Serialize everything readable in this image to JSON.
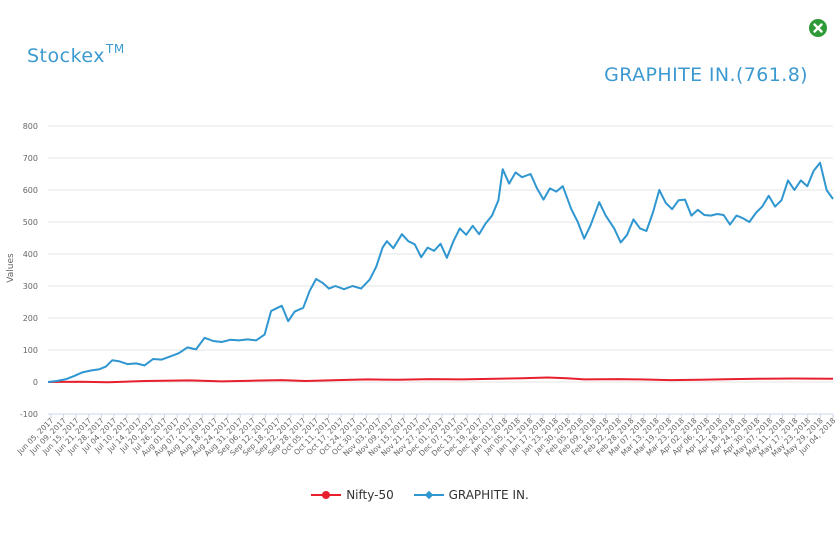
{
  "brand": {
    "name": "Stockex",
    "mark": "TM"
  },
  "stock_title": "GRAPHITE IN.(761.8)",
  "icons": {
    "close": "close-icon"
  },
  "colors": {
    "accent": "#3d9ad1",
    "nifty": "#e8202e",
    "graphite": "#2f96d0",
    "close": "#2e9a38"
  },
  "legend": {
    "nifty_label": "Nifty-50",
    "graphite_label": "GRAPHITE IN."
  },
  "chart_data": {
    "type": "line",
    "ylabel": "Values",
    "ylim": [
      -100,
      800
    ],
    "yticks": [
      -100,
      0,
      100,
      200,
      300,
      400,
      500,
      600,
      700,
      800
    ],
    "x_start": "2017-06-05",
    "x_end": "2018-06-06",
    "xticks": [
      "Jun 05, 2017",
      "Jun 09, 2017",
      "Jun 15, 2017",
      "Jun 21, 2017",
      "Jun 28, 2017",
      "Jul 04, 2017",
      "Jul 10, 2017",
      "Jul 14, 2017",
      "Jul 20, 2017",
      "Jul 26, 2017",
      "Aug 01, 2017",
      "Aug 07, 2017",
      "Aug 11, 2017",
      "Aug 18, 2017",
      "Aug 24, 2017",
      "Aug 31, 2017",
      "Sep 06, 2017",
      "Sep 12, 2017",
      "Sep 18, 2017",
      "Sep 22, 2017",
      "Sep 28, 2017",
      "Oct 05, 2017",
      "Oct 11, 2017",
      "Oct 17, 2017",
      "Oct 24, 2017",
      "Oct 30, 2017",
      "Nov 03, 2017",
      "Nov 09, 2017",
      "Nov 15, 2017",
      "Nov 21, 2017",
      "Nov 27, 2017",
      "Dec 01, 2017",
      "Dec 07, 2017",
      "Dec 13, 2017",
      "Dec 19, 2017",
      "Dec 26, 2017",
      "Jan 01, 2018",
      "Jan 05, 2018",
      "Jan 11, 2018",
      "Jan 17, 2018",
      "Jan 23, 2018",
      "Jan 30, 2018",
      "Feb 05, 2018",
      "Feb 09, 2018",
      "Feb 16, 2018",
      "Feb 22, 2018",
      "Feb 28, 2018",
      "Mar 07, 2018",
      "Mar 13, 2018",
      "Mar 19, 2018",
      "Mar 23, 2018",
      "Apr 02, 2018",
      "Apr 06, 2018",
      "Apr 12, 2018",
      "Apr 18, 2018",
      "Apr 24, 2018",
      "Apr 30, 2018",
      "May 07, 2018",
      "May 11, 2018",
      "May 17, 2018",
      "May 23, 2018",
      "May 29, 2018",
      "Jun 04, 2018"
    ],
    "legend_position": "bottom",
    "grid": true,
    "series": [
      {
        "name": "Nifty-50",
        "color": "#e8202e",
        "points": [
          [
            "2017-06-05",
            0
          ],
          [
            "2017-06-20",
            1
          ],
          [
            "2017-07-03",
            -1
          ],
          [
            "2017-07-20",
            3
          ],
          [
            "2017-08-10",
            5
          ],
          [
            "2017-08-25",
            2
          ],
          [
            "2017-09-08",
            4
          ],
          [
            "2017-09-22",
            6
          ],
          [
            "2017-10-03",
            3
          ],
          [
            "2017-10-18",
            6
          ],
          [
            "2017-11-01",
            8
          ],
          [
            "2017-11-15",
            7
          ],
          [
            "2017-11-30",
            9
          ],
          [
            "2017-12-15",
            8
          ],
          [
            "2017-12-31",
            10
          ],
          [
            "2018-01-12",
            12
          ],
          [
            "2018-01-24",
            14
          ],
          [
            "2018-02-02",
            12
          ],
          [
            "2018-02-10",
            8
          ],
          [
            "2018-02-26",
            9
          ],
          [
            "2018-03-08",
            8
          ],
          [
            "2018-03-22",
            6
          ],
          [
            "2018-04-05",
            7
          ],
          [
            "2018-04-20",
            9
          ],
          [
            "2018-05-02",
            10
          ],
          [
            "2018-05-18",
            11
          ],
          [
            "2018-06-06",
            10
          ]
        ]
      },
      {
        "name": "GRAPHITE IN.",
        "color": "#2f96d0",
        "points": [
          [
            "2017-06-05",
            0
          ],
          [
            "2017-06-09",
            3
          ],
          [
            "2017-06-13",
            8
          ],
          [
            "2017-06-17",
            18
          ],
          [
            "2017-06-21",
            30
          ],
          [
            "2017-06-25",
            36
          ],
          [
            "2017-06-29",
            40
          ],
          [
            "2017-07-02",
            48
          ],
          [
            "2017-07-05",
            68
          ],
          [
            "2017-07-08",
            65
          ],
          [
            "2017-07-12",
            56
          ],
          [
            "2017-07-16",
            58
          ],
          [
            "2017-07-20",
            52
          ],
          [
            "2017-07-24",
            72
          ],
          [
            "2017-07-28",
            70
          ],
          [
            "2017-08-01",
            80
          ],
          [
            "2017-08-05",
            90
          ],
          [
            "2017-08-09",
            108
          ],
          [
            "2017-08-13",
            102
          ],
          [
            "2017-08-17",
            138
          ],
          [
            "2017-08-21",
            128
          ],
          [
            "2017-08-25",
            125
          ],
          [
            "2017-08-29",
            132
          ],
          [
            "2017-09-02",
            130
          ],
          [
            "2017-09-06",
            133
          ],
          [
            "2017-09-10",
            130
          ],
          [
            "2017-09-14",
            148
          ],
          [
            "2017-09-17",
            222
          ],
          [
            "2017-09-20",
            232
          ],
          [
            "2017-09-22",
            238
          ],
          [
            "2017-09-25",
            190
          ],
          [
            "2017-09-28",
            220
          ],
          [
            "2017-10-02",
            232
          ],
          [
            "2017-10-05",
            285
          ],
          [
            "2017-10-08",
            322
          ],
          [
            "2017-10-11",
            310
          ],
          [
            "2017-10-14",
            292
          ],
          [
            "2017-10-17",
            300
          ],
          [
            "2017-10-21",
            290
          ],
          [
            "2017-10-25",
            300
          ],
          [
            "2017-10-29",
            292
          ],
          [
            "2017-11-02",
            320
          ],
          [
            "2017-11-05",
            360
          ],
          [
            "2017-11-08",
            420
          ],
          [
            "2017-11-10",
            440
          ],
          [
            "2017-11-13",
            418
          ],
          [
            "2017-11-17",
            462
          ],
          [
            "2017-11-20",
            440
          ],
          [
            "2017-11-23",
            430
          ],
          [
            "2017-11-26",
            390
          ],
          [
            "2017-11-29",
            420
          ],
          [
            "2017-12-02",
            410
          ],
          [
            "2017-12-05",
            432
          ],
          [
            "2017-12-08",
            388
          ],
          [
            "2017-12-11",
            440
          ],
          [
            "2017-12-14",
            480
          ],
          [
            "2017-12-17",
            460
          ],
          [
            "2017-12-20",
            488
          ],
          [
            "2017-12-23",
            462
          ],
          [
            "2017-12-26",
            495
          ],
          [
            "2017-12-29",
            520
          ],
          [
            "2018-01-01",
            568
          ],
          [
            "2018-01-03",
            665
          ],
          [
            "2018-01-06",
            620
          ],
          [
            "2018-01-09",
            655
          ],
          [
            "2018-01-12",
            640
          ],
          [
            "2018-01-16",
            650
          ],
          [
            "2018-01-19",
            605
          ],
          [
            "2018-01-22",
            570
          ],
          [
            "2018-01-25",
            605
          ],
          [
            "2018-01-28",
            595
          ],
          [
            "2018-01-31",
            612
          ],
          [
            "2018-02-04",
            540
          ],
          [
            "2018-02-07",
            500
          ],
          [
            "2018-02-10",
            448
          ],
          [
            "2018-02-13",
            490
          ],
          [
            "2018-02-17",
            562
          ],
          [
            "2018-02-20",
            520
          ],
          [
            "2018-02-24",
            480
          ],
          [
            "2018-02-27",
            436
          ],
          [
            "2018-03-02",
            460
          ],
          [
            "2018-03-05",
            508
          ],
          [
            "2018-03-08",
            480
          ],
          [
            "2018-03-11",
            472
          ],
          [
            "2018-03-14",
            528
          ],
          [
            "2018-03-17",
            600
          ],
          [
            "2018-03-20",
            560
          ],
          [
            "2018-03-23",
            540
          ],
          [
            "2018-03-26",
            568
          ],
          [
            "2018-03-29",
            570
          ],
          [
            "2018-04-01",
            520
          ],
          [
            "2018-04-04",
            538
          ],
          [
            "2018-04-07",
            522
          ],
          [
            "2018-04-10",
            520
          ],
          [
            "2018-04-13",
            525
          ],
          [
            "2018-04-16",
            522
          ],
          [
            "2018-04-19",
            492
          ],
          [
            "2018-04-22",
            520
          ],
          [
            "2018-04-25",
            512
          ],
          [
            "2018-04-28",
            500
          ],
          [
            "2018-05-01",
            528
          ],
          [
            "2018-05-04",
            548
          ],
          [
            "2018-05-07",
            582
          ],
          [
            "2018-05-10",
            548
          ],
          [
            "2018-05-13",
            568
          ],
          [
            "2018-05-16",
            630
          ],
          [
            "2018-05-19",
            600
          ],
          [
            "2018-05-22",
            630
          ],
          [
            "2018-05-25",
            612
          ],
          [
            "2018-05-28",
            660
          ],
          [
            "2018-05-31",
            685
          ],
          [
            "2018-06-03",
            600
          ],
          [
            "2018-06-06",
            572
          ]
        ]
      }
    ]
  }
}
